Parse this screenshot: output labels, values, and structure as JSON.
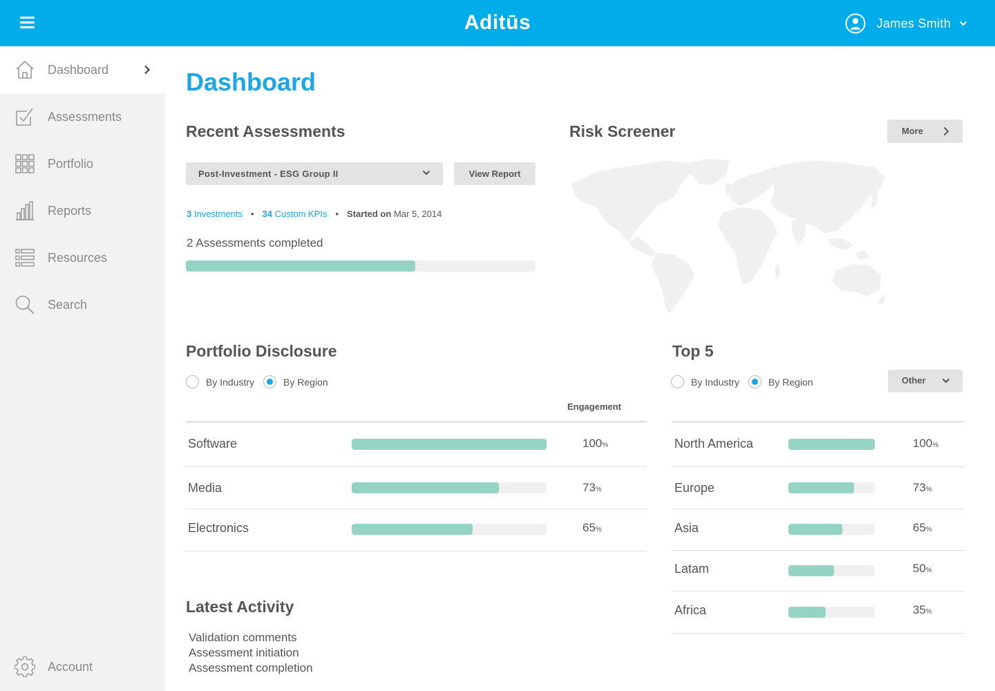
{
  "header": {
    "brand": "Aditūs",
    "user_name": "James Smith",
    "menu_icon": "hamburger-icon",
    "user_icon": "user-circle-icon",
    "caret_icon": "chevron-down-icon",
    "color": "#00ace9"
  },
  "sidebar": {
    "items": [
      {
        "label": "Dashboard",
        "icon": "home-icon",
        "active": true
      },
      {
        "label": "Assessments",
        "icon": "checkbox-icon"
      },
      {
        "label": "Portfolio",
        "icon": "grid-icon"
      },
      {
        "label": "Reports",
        "icon": "bar-chart-icon"
      },
      {
        "label": "Resources",
        "icon": "list-icon"
      },
      {
        "label": "Search",
        "icon": "search-icon"
      }
    ],
    "account": {
      "label": "Account",
      "icon": "gear-icon"
    }
  },
  "main": {
    "title": "Dashboard",
    "recent": {
      "title": "Recent Assessments",
      "select_value": "Post-Investment - ESG Group II",
      "view_report": "View Report",
      "investments_count": "3",
      "investments_label": "Investments",
      "kpis_count": "34",
      "kpis_label": "Custom KPIs",
      "started_label": "Started on",
      "started_date": "Mar 5, 2014",
      "completed_label": "2 Assessments completed",
      "progress": 0.656
    },
    "risk": {
      "title": "Risk Screener",
      "more": "More"
    },
    "disclosure": {
      "title": "Portfolio Disclosure",
      "radio_industry": "By Industry",
      "radio_region": "By Region",
      "selected": "By Region",
      "column_header": "Engagement",
      "rows": [
        {
          "label": "Software",
          "value": "100",
          "unit": "%",
          "fill": 1.0
        },
        {
          "label": "Media",
          "value": "73",
          "unit": "%",
          "fill": 0.755
        },
        {
          "label": "Electronics",
          "value": "65",
          "unit": "%",
          "fill": 0.62
        }
      ]
    },
    "top5": {
      "title": "Top 5",
      "radio_industry": "By Industry",
      "radio_region": "By Region",
      "selected": "By Region",
      "dropdown": "Other",
      "rows": [
        {
          "label": "North America",
          "value": "100",
          "unit": "%",
          "fill": 1.0
        },
        {
          "label": "Europe",
          "value": "73",
          "unit": "%",
          "fill": 0.76
        },
        {
          "label": "Asia",
          "value": "65",
          "unit": "%",
          "fill": 0.62
        },
        {
          "label": "Latam",
          "value": "50",
          "unit": "%",
          "fill": 0.53
        },
        {
          "label": "Africa",
          "value": "35",
          "unit": "%",
          "fill": 0.43
        }
      ]
    },
    "activity": {
      "title": "Latest Activity",
      "items": [
        "Validation comments",
        "Assessment initiation",
        "Assessment completion"
      ]
    }
  }
}
